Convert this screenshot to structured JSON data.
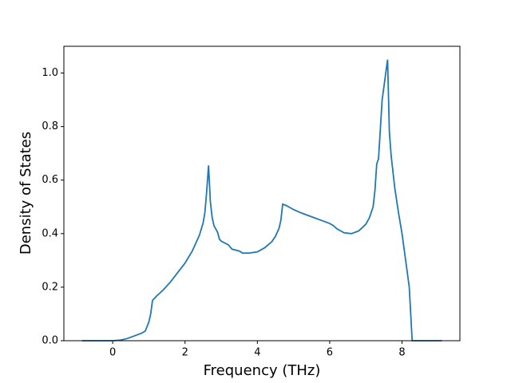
{
  "chart_data": {
    "type": "line",
    "x_label": "Frequency (THz)",
    "y_label": "Density of States",
    "x": [
      -0.85,
      0,
      0.2,
      0.4,
      0.6,
      0.8,
      0.9,
      1.0,
      1.05,
      1.1,
      1.2,
      1.4,
      1.6,
      1.8,
      2.0,
      2.2,
      2.4,
      2.5,
      2.55,
      2.6,
      2.65,
      2.7,
      2.75,
      2.8,
      2.9,
      2.95,
      3.0,
      3.2,
      3.3,
      3.5,
      3.6,
      3.8,
      4.0,
      4.2,
      4.4,
      4.5,
      4.6,
      4.65,
      4.7,
      4.8,
      5.0,
      5.2,
      5.4,
      5.6,
      5.8,
      6.0,
      6.1,
      6.2,
      6.4,
      6.6,
      6.8,
      7.0,
      7.1,
      7.2,
      7.25,
      7.3,
      7.35,
      7.45,
      7.5,
      7.6,
      7.65,
      7.7,
      7.8,
      7.9,
      8.0,
      8.1,
      8.2,
      8.28,
      8.5,
      9.1
    ],
    "series": [
      {
        "color": "#1f77b4",
        "values": [
          0,
          0,
          0.002,
          0.008,
          0.018,
          0.028,
          0.036,
          0.07,
          0.1,
          0.15,
          0.165,
          0.19,
          0.22,
          0.255,
          0.29,
          0.335,
          0.395,
          0.44,
          0.48,
          0.56,
          0.655,
          0.52,
          0.46,
          0.43,
          0.405,
          0.38,
          0.372,
          0.358,
          0.342,
          0.335,
          0.327,
          0.328,
          0.332,
          0.347,
          0.37,
          0.39,
          0.42,
          0.45,
          0.51,
          0.505,
          0.49,
          0.478,
          0.468,
          0.458,
          0.448,
          0.438,
          0.43,
          0.418,
          0.403,
          0.4,
          0.41,
          0.435,
          0.46,
          0.5,
          0.56,
          0.66,
          0.68,
          0.9,
          0.95,
          1.05,
          0.78,
          0.69,
          0.57,
          0.48,
          0.4,
          0.3,
          0.2,
          0,
          0,
          0
        ]
      }
    ],
    "xlim": [
      -1.35,
      9.6
    ],
    "ylim": [
      0,
      1.1
    ],
    "xticks": [
      0,
      2,
      4,
      6,
      8
    ],
    "yticks": [
      {
        "value": 0,
        "label": "0.0"
      },
      0.2,
      0.4,
      0.6,
      0.8,
      {
        "value": 1,
        "label": "1.0"
      }
    ]
  }
}
